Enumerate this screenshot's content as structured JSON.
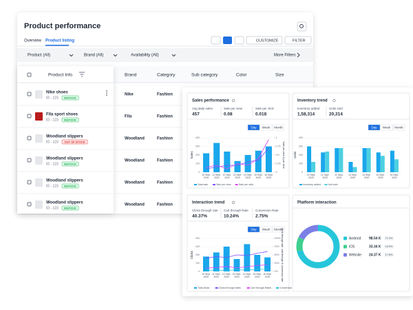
{
  "header": {
    "title": "Product performance"
  },
  "tabs": [
    "Overview",
    "Product listing"
  ],
  "actions": [
    "CUSTOMIZE",
    "FILTER"
  ],
  "filters": [
    "Product (All)",
    "Brand (All)",
    "Availability (All)"
  ],
  "more_filters": "More Filters",
  "table": {
    "columns": [
      "Product Info",
      "Brand",
      "Category",
      "Sub category",
      "Color",
      "Size"
    ],
    "rows": [
      {
        "name": "Nike shoes",
        "id": "ID - 123",
        "status": "INSTOCK",
        "in_stock": true,
        "brand": "Nike",
        "category": "Fashion"
      },
      {
        "name": "Fila sport shoes",
        "id": "ID - 123",
        "status": "INSTOCK",
        "in_stock": true,
        "brand": "Fila",
        "category": "Fashion"
      },
      {
        "name": "Woodland slippers",
        "id": "ID - 123",
        "status": "OUT OF STOCK",
        "in_stock": false,
        "brand": "Woodland",
        "category": "Fashion"
      },
      {
        "name": "Woodland slippers",
        "id": "ID - 123",
        "status": "INSTOCK",
        "in_stock": true,
        "brand": "Woodland",
        "category": "Fashion"
      },
      {
        "name": "Woodland slippers",
        "id": "ID - 123",
        "status": "INSTOCK",
        "in_stock": true,
        "brand": "Woodland",
        "category": "Fashion"
      },
      {
        "name": "Woodland slippers",
        "id": "ID - 123",
        "status": "INSTOCK",
        "in_stock": true,
        "brand": "Woodland",
        "category": "Fashion"
      }
    ]
  },
  "dashboard": {
    "charts": [
      {
        "title": "Sales performance",
        "metrics": [
          {
            "label": "Avg daily sales",
            "value": "457"
          },
          {
            "label": "Sale per view",
            "value": "0.08"
          },
          {
            "label": "Sale per click",
            "value": "0.018"
          }
        ],
        "periods": [
          "Day",
          "Week",
          "Month"
        ],
        "ylabel": "Sales",
        "y2label": "Sale per view & per click",
        "categories": [
          "10 Sept 2020",
          "11 Sept 2020",
          "12 Sept 2020",
          "13 Sept 2020",
          "14 Sept 2020",
          "15 Sept 2020",
          "16 Sept 2020"
        ],
        "ylim": [
          0,
          400
        ],
        "yticks": [
          0,
          100,
          200,
          300,
          400
        ],
        "y2lim": [
          0,
          1
        ],
        "y2ticks": [
          0,
          0.25,
          0.5,
          0.75,
          1
        ],
        "series": [
          {
            "name": "Total sale",
            "type": "bar",
            "color": "#1aa7ec",
            "values": [
              220,
              340,
              240,
              130,
              200,
              250,
              300
            ]
          },
          {
            "name": "Sale per view",
            "type": "line",
            "axis": "y2",
            "color": "#7c4dff",
            "values": [
              0.1,
              0.15,
              0.2,
              0.2,
              0.3,
              0.35,
              0.7
            ]
          },
          {
            "name": "Sale per click",
            "type": "line",
            "axis": "y2",
            "color": "#e040fb",
            "values": [
              0.15,
              0.2,
              0.1,
              0.25,
              0.2,
              0.4,
              0.95
            ]
          }
        ]
      },
      {
        "title": "Inventory trend",
        "metrics": [
          {
            "label": "Inventory added",
            "value": "1,58,314"
          },
          {
            "label": "Units sold",
            "value": "20,314"
          }
        ],
        "periods": [
          "Day",
          "Week",
          "Month"
        ],
        "ylabel": "Units",
        "categories": [
          "10 Sept 2020",
          "11 Sept 2020",
          "12 Sept 2020",
          "13 Sept 2020",
          "14 Sept 2020",
          "15 Sept 2020",
          "16 Sept 2020"
        ],
        "ylim": [
          0,
          400
        ],
        "yticks": [
          0,
          100,
          200,
          300,
          400
        ],
        "series": [
          {
            "name": "Inventory added",
            "type": "bar",
            "color": "#1aa7ec",
            "values": [
              300,
              230,
              280,
              120,
              280,
              230,
              250
            ]
          },
          {
            "name": "Unit sold",
            "type": "bar",
            "color": "#4dd0e1",
            "values": [
              120,
              240,
              280,
              60,
              280,
              190,
              150
            ]
          }
        ]
      },
      {
        "title": "Interaction trend",
        "metrics": [
          {
            "label": "Clicks through rate",
            "value": "40.37%"
          },
          {
            "label": "Cart through Rate",
            "value": "10.24%"
          },
          {
            "label": "Conversion Rate",
            "value": "2.75%"
          }
        ],
        "periods": [
          "Day",
          "Week",
          "Month"
        ],
        "ylabel": "Clicks",
        "y2label": "Click-through rate, cart through & conversion rate",
        "categories": [
          "10 Sept 2020",
          "11 Sept 2020",
          "12 Sept 2020",
          "13 Sept 2020",
          "14 Sept 2020",
          "15 Sept 2020",
          "16 Sept 2020"
        ],
        "ylim": [
          0,
          400
        ],
        "yticks": [
          0,
          100,
          200,
          300,
          400
        ],
        "y2lim": [
          0,
          100
        ],
        "y2ticks": [
          {
            "value": 0,
            "label": "0%"
          },
          {
            "value": 25,
            "label": "25%"
          },
          {
            "value": 50,
            "label": "50%"
          },
          {
            "value": 75,
            "label": "75%"
          },
          {
            "value": 100,
            "label": "100%"
          }
        ],
        "series": [
          {
            "name": "Total clicks",
            "type": "bar",
            "color": "#1aa7ec",
            "values": [
              180,
              230,
              300,
              150,
              330,
              200,
              170
            ]
          },
          {
            "name": "Clicks through rates",
            "type": "line",
            "axis": "y2",
            "color": "#7c4dff",
            "values": [
              40,
              45,
              42,
              50,
              48,
              55,
              60
            ]
          },
          {
            "name": "Cart through Rates",
            "type": "line",
            "axis": "y2",
            "color": "#e040fb",
            "values": [
              10,
              12,
              15,
              11,
              14,
              18,
              20
            ]
          },
          {
            "name": "Conversion Rate",
            "type": "line",
            "axis": "y2",
            "color": "#26c6da",
            "values": [
              3,
              4,
              3,
              5,
              4,
              6,
              7
            ]
          }
        ]
      }
    ],
    "platform": {
      "title": "Platform interaction",
      "items": [
        {
          "name": "Android",
          "value": "98.54 K",
          "share": 71.3,
          "share_label": "71.3%",
          "color": "#26c6da"
        },
        {
          "name": "iOS",
          "value": "33.34 K",
          "share": 10.9,
          "share_label": "10.9%",
          "color": "#3ecf8e"
        },
        {
          "name": "Website",
          "value": "24.37 K",
          "share": 17.8,
          "share_label": "17.8%",
          "color": "#7b7fe6"
        }
      ]
    }
  }
}
